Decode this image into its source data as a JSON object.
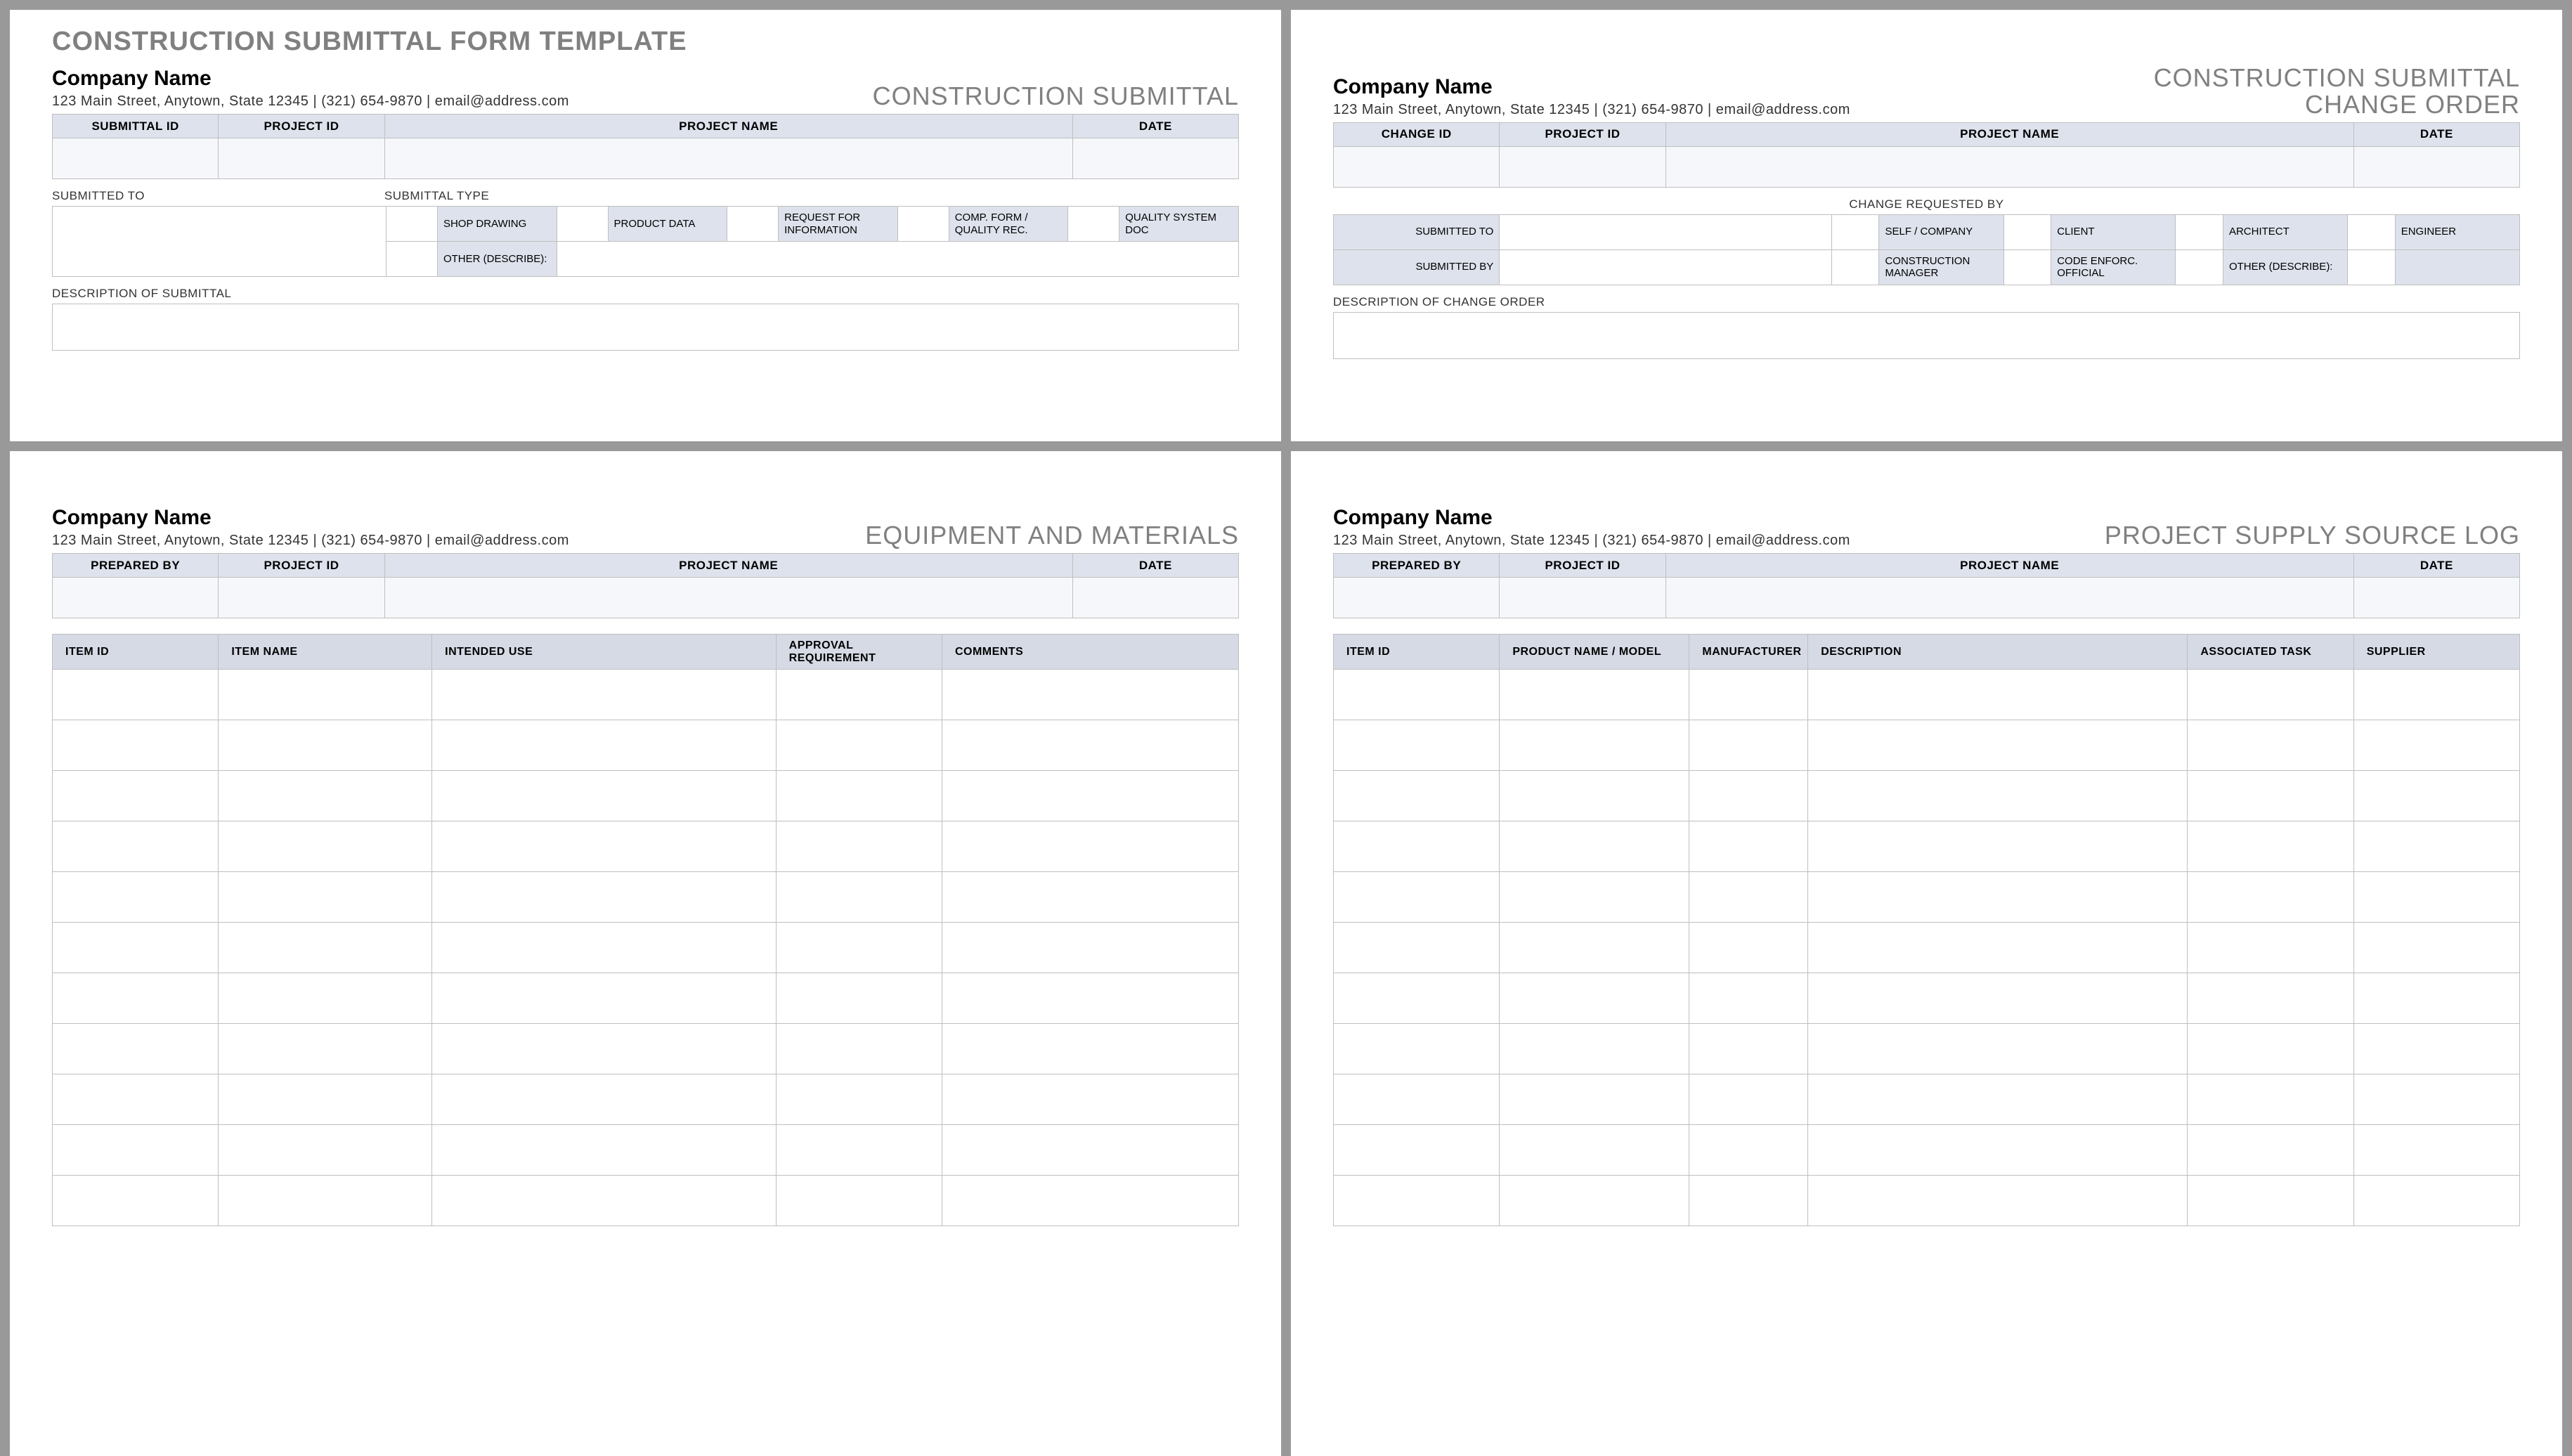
{
  "global": {
    "main_title": "CONSTRUCTION SUBMITTAL FORM TEMPLATE",
    "company": "Company Name",
    "address": "123 Main Street, Anytown, State 12345 | (321) 654-9870 | email@address.com",
    "colors": {
      "page_bg": "#999999",
      "panel_bg": "#ffffff",
      "header_cell": "#dde2ec",
      "header_cell_dark": "#d5dae5",
      "input_cell": "#f5f7fa",
      "border": "#bfbfbf",
      "title_gray": "#808080"
    }
  },
  "p1": {
    "doc_type": "CONSTRUCTION SUBMITTAL",
    "hdr": [
      "SUBMITTAL ID",
      "PROJECT ID",
      "PROJECT NAME",
      "DATE"
    ],
    "sec_submitted_to": "SUBMITTED TO",
    "sec_submittal_type": "SUBMITTAL TYPE",
    "types": [
      "SHOP DRAWING",
      "PRODUCT DATA",
      "REQUEST FOR INFORMATION",
      "COMP. FORM / QUALITY REC.",
      "QUALITY SYSTEM DOC",
      "OTHER (DESCRIBE):"
    ],
    "sec_desc": "DESCRIPTION OF SUBMITTAL"
  },
  "p2": {
    "doc_type_l1": "CONSTRUCTION SUBMITTAL",
    "doc_type_l2": "CHANGE ORDER",
    "hdr": [
      "CHANGE ID",
      "PROJECT ID",
      "PROJECT NAME",
      "DATE"
    ],
    "sec_req_by": "CHANGE REQUESTED BY",
    "row_to": "SUBMITTED TO",
    "row_by": "SUBMITTED BY",
    "opts1": [
      "SELF / COMPANY",
      "CLIENT",
      "ARCHITECT",
      "ENGINEER"
    ],
    "opts2": [
      "CONSTRUCTION MANAGER",
      "CODE ENFORC. OFFICIAL",
      "OTHER (DESCRIBE):"
    ],
    "sec_desc": "DESCRIPTION OF CHANGE ORDER"
  },
  "p3": {
    "doc_type": "EQUIPMENT AND MATERIALS",
    "hdr": [
      "PREPARED BY",
      "PROJECT ID",
      "PROJECT NAME",
      "DATE"
    ],
    "cols": [
      "ITEM ID",
      "ITEM NAME",
      "INTENDED USE",
      "APPROVAL REQUIREMENT",
      "COMMENTS"
    ],
    "row_count": 11
  },
  "p4": {
    "doc_type": "PROJECT SUPPLY SOURCE LOG",
    "hdr": [
      "PREPARED BY",
      "PROJECT ID",
      "PROJECT NAME",
      "DATE"
    ],
    "cols": [
      "ITEM ID",
      "PRODUCT NAME / MODEL",
      "MANUFACTURER",
      "DESCRIPTION",
      "ASSOCIATED TASK",
      "SUPPLIER"
    ],
    "row_count": 11
  }
}
